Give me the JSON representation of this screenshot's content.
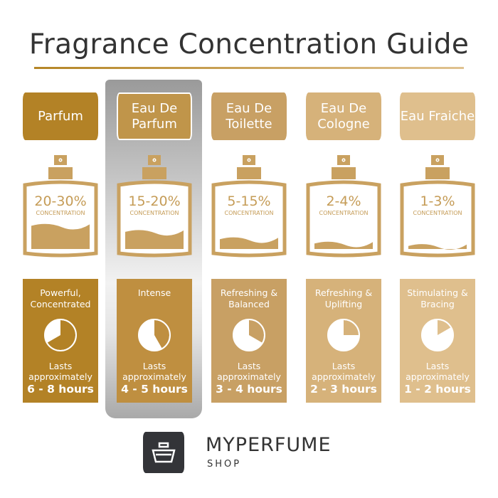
{
  "title": "Fragrance Concentration Guide",
  "concentration_label": "CONCENTRATION",
  "lasts_label": "Lasts approximately",
  "types": [
    {
      "name": "Parfum",
      "concentration": "20-30%",
      "description": "Powerful, Concentrated",
      "duration": "6 - 8 hours",
      "color": "#b38226",
      "fill_level": 0.38,
      "pie_fraction": 0.667,
      "highlighted": false
    },
    {
      "name": "Eau De Parfum",
      "concentration": "15-20%",
      "description": "Intense",
      "duration": "4 - 5 hours",
      "color": "#bf8f40",
      "fill_level": 0.28,
      "pie_fraction": 0.417,
      "highlighted": true
    },
    {
      "name": "Eau De Toilette",
      "concentration": "5-15%",
      "description": "Refreshing & Balanced",
      "duration": "3 - 4 hours",
      "color": "#c8a064",
      "fill_level": 0.16,
      "pie_fraction": 0.333,
      "highlighted": false
    },
    {
      "name": "Eau De Cologne",
      "concentration": "2-4%",
      "description": "Refreshing & Uplifting",
      "duration": "2 - 3 hours",
      "color": "#d6b27a",
      "fill_level": 0.09,
      "pie_fraction": 0.25,
      "highlighted": false
    },
    {
      "name": "Eau Fraiche",
      "concentration": "1-3%",
      "description": "Stimulating & Bracing",
      "duration": "1 - 2 hours",
      "color": "#dfbf8d",
      "fill_level": 0.05,
      "pie_fraction": 0.167,
      "highlighted": false
    }
  ],
  "bottle_color": "#c9a160",
  "logo": {
    "brand": "MYPERFUME",
    "sub": "SHOP"
  }
}
